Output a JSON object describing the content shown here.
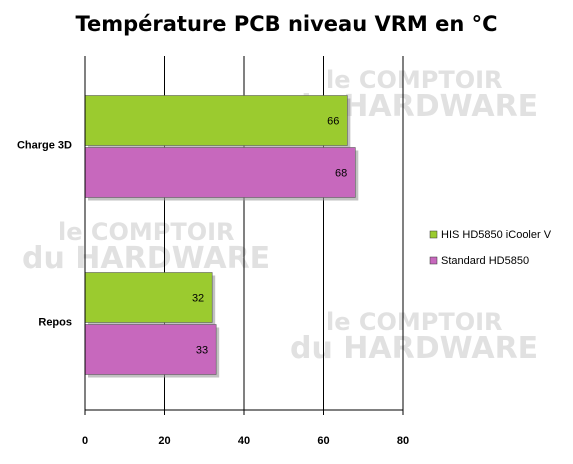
{
  "chart_data": {
    "type": "bar",
    "orientation": "horizontal",
    "title": "Température PCB niveau VRM en °C",
    "categories": [
      "Charge 3D",
      "Repos"
    ],
    "series": [
      {
        "name": "HIS HD5850 iCooler V",
        "values": [
          66,
          32
        ],
        "color": "#9bcb2f"
      },
      {
        "name": "Standard HD5850",
        "values": [
          68,
          33
        ],
        "color": "#c768bd"
      }
    ],
    "xlim": [
      0,
      80
    ],
    "xticks": [
      0,
      20,
      40,
      60,
      80
    ],
    "grid": true,
    "legend_position": "right",
    "watermark": {
      "line1": "le COMPTOIR",
      "line2": "du HARDWARE"
    }
  }
}
